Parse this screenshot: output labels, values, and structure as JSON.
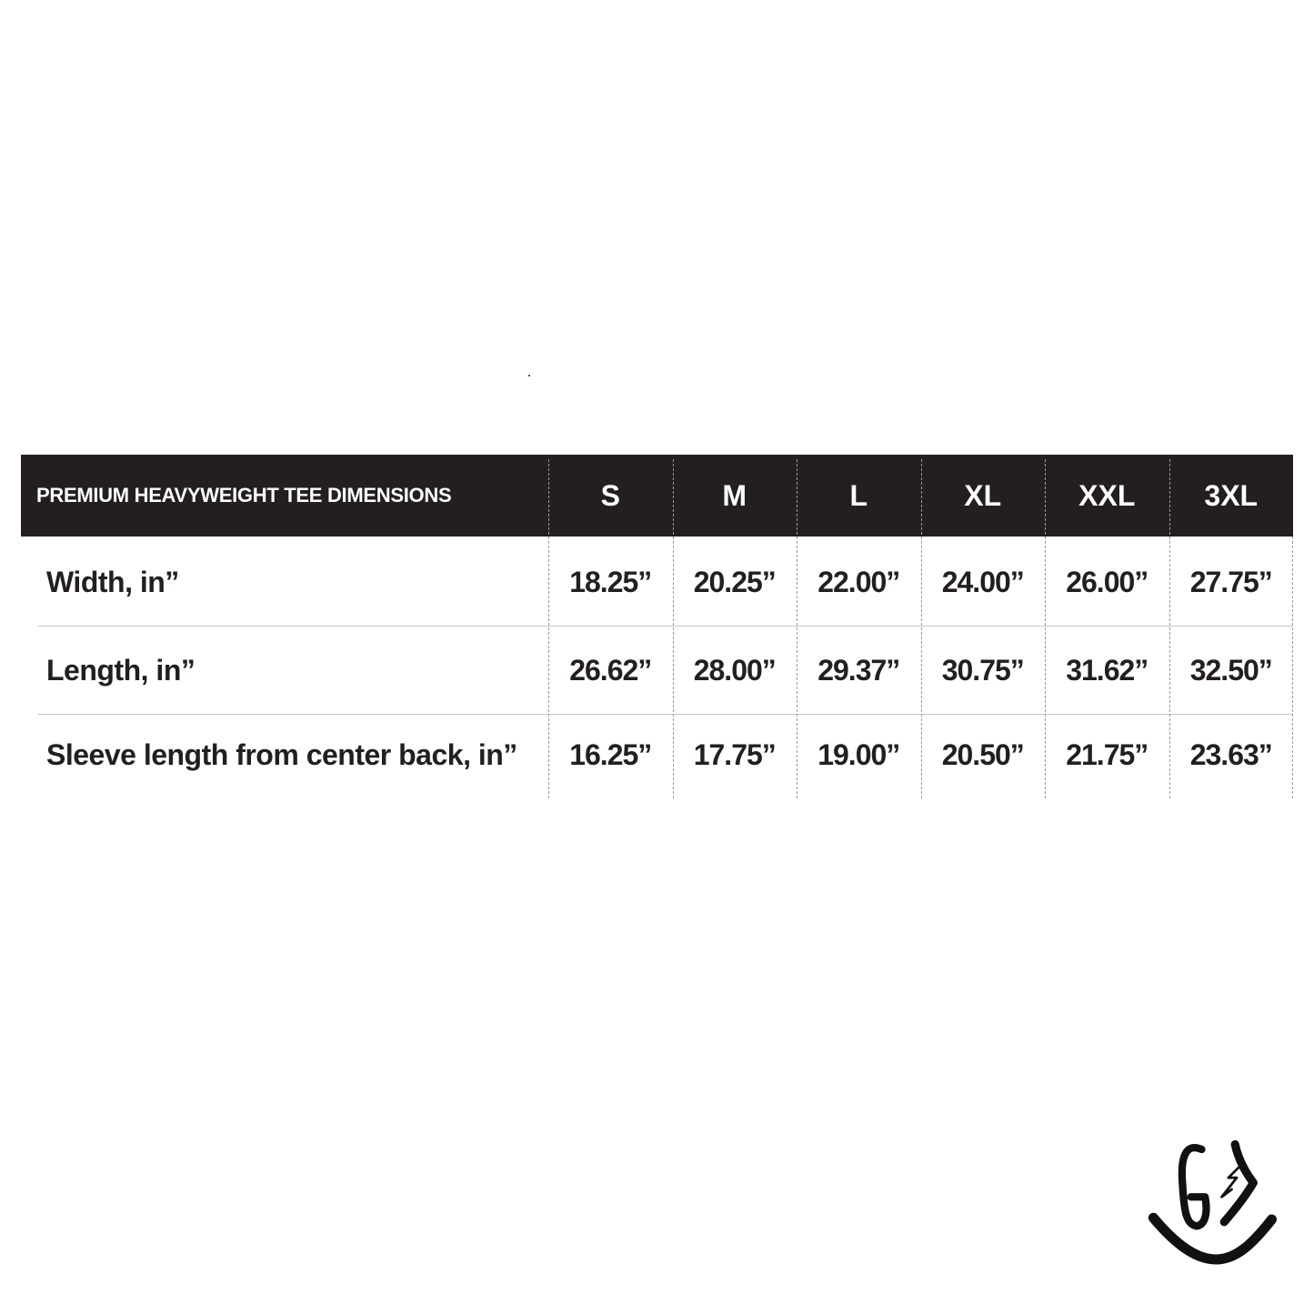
{
  "table": {
    "title": "PREMIUM HEAVYWEIGHT TEE DIMENSIONS",
    "sizes": [
      "S",
      "M",
      "L",
      "XL",
      "XXL",
      "3XL"
    ],
    "rows": [
      {
        "label": "Width, in”",
        "values": [
          "18.25”",
          "20.25”",
          "22.00”",
          "24.00”",
          "26.00”",
          "27.75”"
        ]
      },
      {
        "label": "Length, in”",
        "values": [
          "26.62”",
          "28.00”",
          "29.37”",
          "30.75”",
          "31.62”",
          "32.50”"
        ]
      },
      {
        "label": "Sleeve length from center back, in”",
        "values": [
          "16.25”",
          "17.75”",
          "19.00”",
          "20.50”",
          "21.75”",
          "23.63”"
        ]
      }
    ]
  },
  "colors": {
    "header_bg": "#231f20",
    "header_text": "#ffffff",
    "body_text": "#231f20"
  },
  "logo": {
    "icon": "g-lightning-smile-logo"
  }
}
